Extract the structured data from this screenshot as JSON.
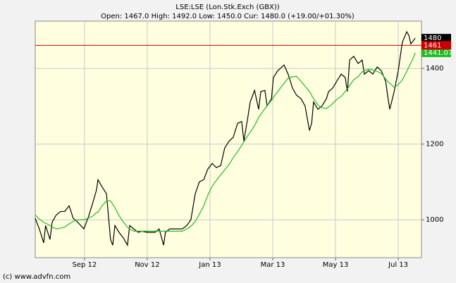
{
  "chart_data": {
    "type": "line",
    "title": "LSE:LSE (Lon.Stk.Exch (GBX))",
    "subtitle": "Open: 1467.0 High: 1492.0 Low: 1450.0 Cur: 1480.0 (+19.00/+01.30%)",
    "footer": "(c) www.advfn.com",
    "x": [
      -1.57,
      -1.44,
      -1.3,
      -1.24,
      -1.1,
      -1.03,
      -0.9,
      -0.76,
      -0.63,
      -0.49,
      -0.36,
      -0.22,
      -0.02,
      0.11,
      0.25,
      0.38,
      0.43,
      0.56,
      0.7,
      0.83,
      0.9,
      0.97,
      1.1,
      1.24,
      1.37,
      1.44,
      1.57,
      1.71,
      1.84,
      1.98,
      2.11,
      2.25,
      2.38,
      2.52,
      2.58,
      2.72,
      2.85,
      2.99,
      3.12,
      3.26,
      3.39,
      3.53,
      3.66,
      3.8,
      3.93,
      4.07,
      4.2,
      4.34,
      4.47,
      4.61,
      4.74,
      4.88,
      5.01,
      5.08,
      5.21,
      5.28,
      5.42,
      5.55,
      5.62,
      5.75,
      5.82,
      5.96,
      6.02,
      6.16,
      6.36,
      6.49,
      6.63,
      6.76,
      6.9,
      7.03,
      7.17,
      7.24,
      7.3,
      7.44,
      7.57,
      7.71,
      7.78,
      7.91,
      8.04,
      8.18,
      8.31,
      8.38,
      8.45,
      8.58,
      8.72,
      8.85,
      8.92,
      9.06,
      9.19,
      9.33,
      9.46,
      9.6,
      9.66,
      9.73,
      9.87,
      10.0,
      10.13,
      10.27,
      10.34,
      10.4,
      10.47,
      10.54
    ],
    "series": [
      {
        "color": "#000000",
        "values": [
          1004,
          976,
          939,
          985,
          948,
          994,
          1013,
          1022,
          1022,
          1037,
          1004,
          994,
          976,
          1004,
          1041,
          1078,
          1106,
          1087,
          1069,
          948,
          933,
          985,
          967,
          952,
          933,
          985,
          976,
          967,
          970,
          967,
          967,
          967,
          976,
          933,
          967,
          976,
          976,
          976,
          976,
          985,
          1000,
          1069,
          1100,
          1106,
          1134,
          1149,
          1138,
          1143,
          1190,
          1208,
          1218,
          1255,
          1260,
          1208,
          1273,
          1311,
          1342,
          1292,
          1339,
          1342,
          1301,
          1320,
          1376,
          1394,
          1409,
          1385,
          1348,
          1329,
          1320,
          1301,
          1236,
          1255,
          1311,
          1292,
          1301,
          1320,
          1339,
          1348,
          1366,
          1385,
          1376,
          1339,
          1422,
          1432,
          1413,
          1422,
          1385,
          1394,
          1385,
          1404,
          1394,
          1366,
          1329,
          1292,
          1339,
          1394,
          1469,
          1497,
          1487,
          1465,
          1472,
          1480
        ]
      },
      {
        "color": "#22bb22",
        "values": [
          1013,
          1002,
          993,
          991,
          985,
          981,
          976,
          978,
          981,
          989,
          996,
          1000,
          1000,
          1004,
          1009,
          1019,
          1020,
          1037,
          1050,
          1050,
          1041,
          1032,
          1011,
          994,
          980,
          976,
          970,
          970,
          970,
          970,
          970,
          970,
          970,
          970,
          970,
          970,
          970,
          970,
          970,
          976,
          983,
          996,
          1015,
          1037,
          1065,
          1089,
          1104,
          1119,
          1132,
          1147,
          1164,
          1180,
          1197,
          1206,
          1223,
          1231,
          1249,
          1270,
          1279,
          1294,
          1301,
          1316,
          1324,
          1339,
          1361,
          1374,
          1378,
          1379,
          1366,
          1353,
          1339,
          1329,
          1320,
          1303,
          1296,
          1294,
          1298,
          1307,
          1318,
          1326,
          1339,
          1346,
          1355,
          1370,
          1378,
          1391,
          1394,
          1398,
          1396,
          1392,
          1387,
          1372,
          1366,
          1361,
          1350,
          1357,
          1370,
          1392,
          1404,
          1415,
          1426,
          1441.07
        ]
      }
    ],
    "reference_line": {
      "value": 1461,
      "color": "#cc0000"
    },
    "xlim": [
      -1.57,
      10.74
    ],
    "xticks": [
      {
        "value": 0,
        "label": "Sep 12"
      },
      {
        "value": 2,
        "label": "Nov 12"
      },
      {
        "value": 4,
        "label": "Jan 13"
      },
      {
        "value": 6,
        "label": "Mar 13"
      },
      {
        "value": 8,
        "label": "May 13"
      },
      {
        "value": 10,
        "label": "Jul 13"
      }
    ],
    "ylim": [
      900,
      1525
    ],
    "yticks": [
      1000,
      1200,
      1400
    ],
    "y_axis_side": "right",
    "grid": true
  }
}
